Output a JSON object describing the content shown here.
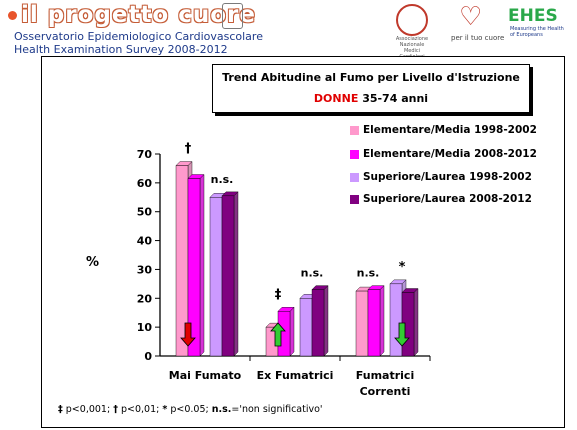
{
  "header": {
    "brand": "il progetto cuore",
    "subtitle_line1": "Osservatorio Epidemiologico Cardiovascolare",
    "subtitle_line2": "Health Examination Survey 2008-2012",
    "logo_heart_text": "per il tuo cuore",
    "logo_ehes": "EHES",
    "logo_ehes_sub": "Measuring the Health of Europeans",
    "logo_anmco_text": "Associazione Nazionale Medici Cardiologi Ospedalieri"
  },
  "colors": {
    "elem_1998": "#ff99cc",
    "elem_2008": "#ff00ff",
    "sup_1998": "#cc99ff",
    "sup_2008": "#800080",
    "arrow_down_red": "#e00000",
    "arrow_up_green": "#33cc33",
    "arrow_down_green": "#33cc33"
  },
  "chart_data": {
    "type": "bar",
    "title": "Trend Abitudine al Fumo per Livello d'Istruzione",
    "subtitle_prefix": "DONNE",
    "subtitle_suffix": "35-74 anni",
    "ylabel": "%",
    "ylim": [
      0,
      70
    ],
    "yticks": [
      0,
      10,
      20,
      30,
      40,
      50,
      60,
      70
    ],
    "categories": [
      "Mai Fumato",
      "Ex Fumatrici",
      "Fumatrici Correnti"
    ],
    "category_lines": [
      [
        "Mai Fumato"
      ],
      [
        "Ex Fumatrici"
      ],
      [
        "Fumatrici",
        "Correnti"
      ]
    ],
    "series": [
      {
        "name": "Elementare/Media 1998-2002",
        "values": [
          66,
          10,
          22.5
        ]
      },
      {
        "name": "Elementare/Media 2008-2012",
        "values": [
          61.5,
          15.5,
          23
        ]
      },
      {
        "name": "Superiore/Laurea 1998-2002",
        "values": [
          55,
          20,
          25
        ]
      },
      {
        "name": "Superiore/Laurea 2008-2012",
        "values": [
          55.5,
          23,
          22
        ]
      }
    ],
    "annotations": [
      {
        "category": 0,
        "group": "elementare",
        "text": "†"
      },
      {
        "category": 0,
        "group": "superiore",
        "text": "n.s."
      },
      {
        "category": 1,
        "group": "elementare",
        "text": "‡"
      },
      {
        "category": 1,
        "group": "superiore",
        "text": "n.s."
      },
      {
        "category": 2,
        "group": "elementare",
        "text": "n.s."
      },
      {
        "category": 2,
        "group": "superiore",
        "text": "*"
      }
    ],
    "arrows": [
      {
        "category": 0,
        "group": "elementare",
        "direction": "down",
        "color": "red"
      },
      {
        "category": 1,
        "group": "elementare",
        "direction": "up",
        "color": "green"
      },
      {
        "category": 2,
        "group": "superiore",
        "direction": "down",
        "color": "green"
      }
    ],
    "legend_position": "top-right",
    "grid": false
  },
  "footnote": {
    "sym1": "‡",
    "txt1": "p<0,001;",
    "sym2": "†",
    "txt2": "p<0,01;",
    "sym3": "*",
    "txt3": "p<0.05;",
    "sym4": "n.s.",
    "txt4": "='non significativo'"
  }
}
